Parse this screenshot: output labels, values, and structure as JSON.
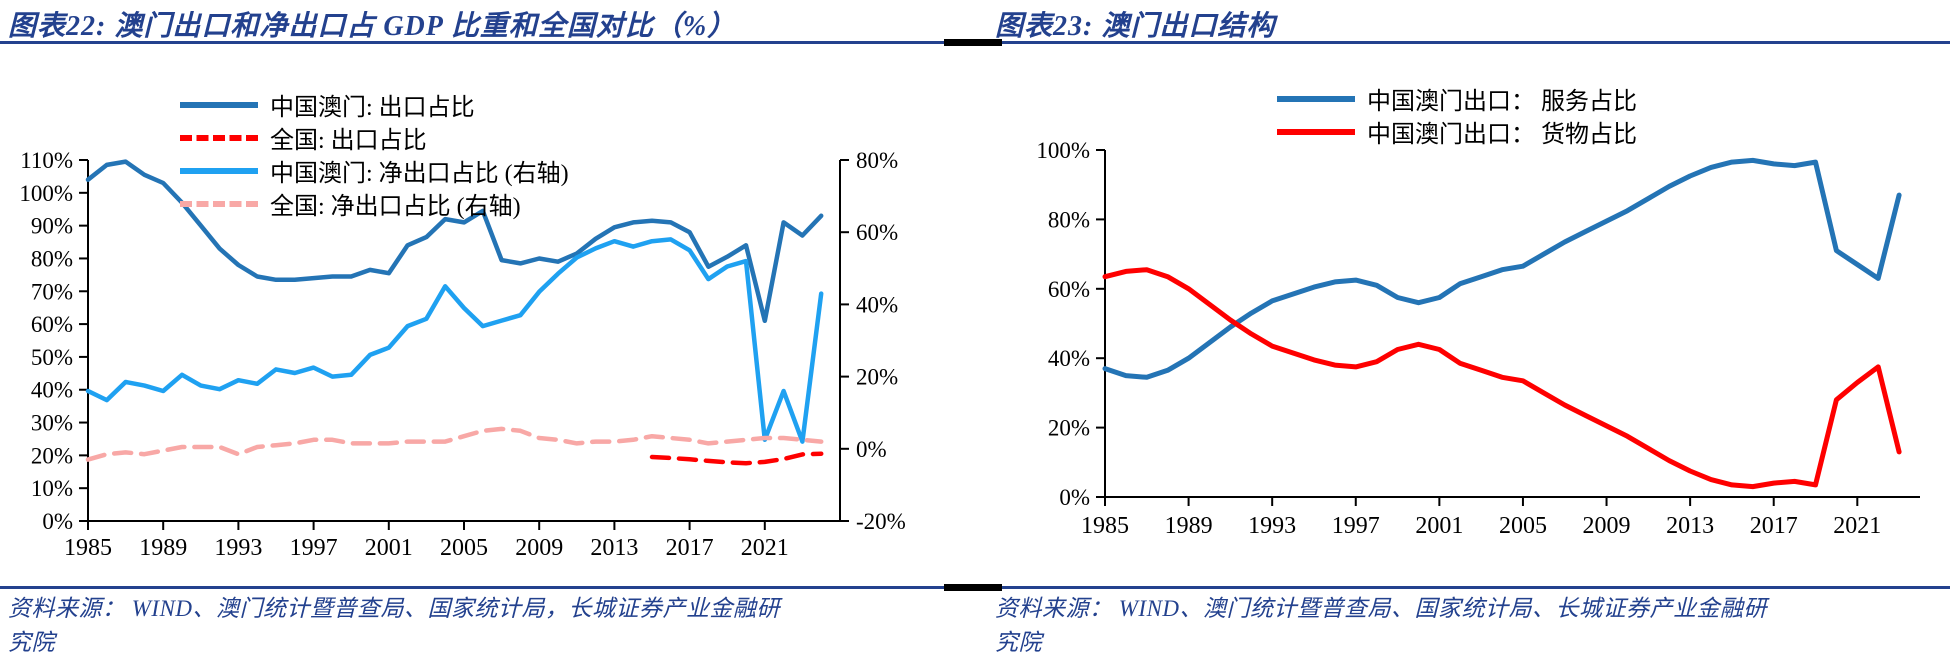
{
  "colors": {
    "navy": "#23418E",
    "axis_black": "#000000",
    "macau_export_blue": "#2474B5",
    "national_export_red": "#FE0000",
    "macau_net_export_lightblue": "#1FA1F1",
    "national_net_export_pink": "#F8A8A6"
  },
  "panels": [
    {
      "title": "图表22:  澳门出口和净出口占 GDP 比重和全国对比（%）",
      "source": "资料来源： WIND、澳门统计暨普查局、国家统计局，长城证券产业金融研究院"
    },
    {
      "title": "图表23:  澳门出口结构",
      "source": "资料来源： WIND、澳门统计暨普查局、国家统计局、长城证券产业金融研究院"
    }
  ],
  "chart_data": [
    {
      "type": "line",
      "title": "澳门出口和净出口占GDP比重和全国对比（%）",
      "grid": false,
      "legend_position": "top-left",
      "x": [
        1985,
        1986,
        1987,
        1988,
        1989,
        1990,
        1991,
        1992,
        1993,
        1994,
        1995,
        1996,
        1997,
        1998,
        1999,
        2000,
        2001,
        2002,
        2003,
        2004,
        2005,
        2006,
        2007,
        2008,
        2009,
        2010,
        2011,
        2012,
        2013,
        2014,
        2015,
        2016,
        2017,
        2018,
        2019,
        2020,
        2021,
        2022,
        2023,
        2024
      ],
      "xlim": [
        1985,
        2025
      ],
      "x_ticks": [
        1985,
        1989,
        1993,
        1997,
        2001,
        2005,
        2009,
        2013,
        2017,
        2021
      ],
      "x_tick_labels": [
        "1985",
        "1989",
        "1993",
        "1997",
        "2001",
        "2005",
        "2009",
        "2013",
        "2017",
        "2021"
      ],
      "left_axis": {
        "lim": [
          0,
          110
        ],
        "tick_values": [
          0,
          10,
          20,
          30,
          40,
          50,
          60,
          70,
          80,
          90,
          100,
          110
        ],
        "tick_labels": [
          "0%",
          "10%",
          "20%",
          "30%",
          "40%",
          "50%",
          "60%",
          "70%",
          "80%",
          "90%",
          "100%",
          "110%"
        ]
      },
      "right_axis": {
        "lim": [
          -20,
          80
        ],
        "tick_values": [
          -20,
          0,
          20,
          40,
          60,
          80
        ],
        "tick_labels": [
          "-20%",
          "0%",
          "20%",
          "40%",
          "60%",
          "80%"
        ]
      },
      "series": [
        {
          "name": "中国澳门: 出口占比",
          "axis": "left",
          "color": "#2474B5",
          "style": "solid",
          "values": [
            104,
            108.5,
            109.5,
            105.5,
            103,
            97,
            90,
            83,
            78,
            74.5,
            73.5,
            73.5,
            74,
            74.5,
            74.5,
            76.5,
            75.5,
            84,
            86.5,
            92,
            91,
            94.5,
            79.5,
            78.5,
            80,
            79,
            81.5,
            86,
            89.5,
            91,
            91.5,
            91,
            88,
            77.5,
            80.5,
            84,
            61,
            91,
            87,
            93
          ]
        },
        {
          "name": "全国: 出口占比",
          "axis": "left",
          "color": "#FE0000",
          "style": "dashed",
          "values": [
            null,
            null,
            null,
            null,
            null,
            null,
            null,
            null,
            null,
            null,
            null,
            null,
            null,
            null,
            null,
            null,
            null,
            null,
            null,
            null,
            null,
            null,
            null,
            null,
            null,
            null,
            null,
            null,
            null,
            null,
            19.5,
            19.2,
            18.8,
            18.3,
            17.9,
            17.6,
            18,
            18.9,
            20.3,
            20.5
          ]
        },
        {
          "name": "中国澳门: 净出口占比 (右轴)",
          "axis": "right",
          "color": "#1FA1F1",
          "style": "solid",
          "values": [
            16,
            13.5,
            18.5,
            17.5,
            16,
            20.5,
            17.5,
            16.5,
            19,
            18,
            22,
            21,
            22.5,
            20,
            20.5,
            26,
            28,
            34,
            36,
            45,
            39,
            34,
            35.5,
            37,
            43.5,
            48.5,
            53,
            55.5,
            57.5,
            56,
            57.5,
            58,
            55,
            47,
            50.5,
            52,
            2.5,
            16,
            2,
            43
          ]
        },
        {
          "name": "全国: 净出口占比 (右轴)",
          "axis": "right",
          "color": "#F8A8A6",
          "style": "dashed",
          "values": [
            -3,
            -1.5,
            -1,
            -1.5,
            -0.5,
            0.5,
            0.5,
            0.5,
            -1.5,
            0.5,
            1,
            1.5,
            2.5,
            2.5,
            1.5,
            1.5,
            1.5,
            2,
            2,
            2,
            3.5,
            5,
            5.5,
            5,
            3,
            2.5,
            1.5,
            2,
            2,
            2.5,
            3.5,
            3,
            2.5,
            1.5,
            2,
            2.5,
            3,
            3,
            2.5,
            2
          ]
        }
      ]
    },
    {
      "type": "line",
      "title": "澳门出口结构",
      "grid": false,
      "legend_position": "top-center",
      "x": [
        1985,
        1986,
        1987,
        1988,
        1989,
        1990,
        1991,
        1992,
        1993,
        1994,
        1995,
        1996,
        1997,
        1998,
        1999,
        2000,
        2001,
        2002,
        2003,
        2004,
        2005,
        2006,
        2007,
        2008,
        2009,
        2010,
        2011,
        2012,
        2013,
        2014,
        2015,
        2016,
        2017,
        2018,
        2019,
        2020,
        2021,
        2022,
        2023
      ],
      "xlim": [
        1985,
        2024
      ],
      "x_ticks": [
        1985,
        1989,
        1993,
        1997,
        2001,
        2005,
        2009,
        2013,
        2017,
        2021
      ],
      "x_tick_labels": [
        "1985",
        "1989",
        "1993",
        "1997",
        "2001",
        "2005",
        "2009",
        "2013",
        "2017",
        "2021"
      ],
      "left_axis": {
        "lim": [
          0,
          100
        ],
        "tick_values": [
          0,
          20,
          40,
          60,
          80,
          100
        ],
        "tick_labels": [
          "0%",
          "20%",
          "40%",
          "60%",
          "80%",
          "100%"
        ]
      },
      "series": [
        {
          "name": "中国澳门出口： 服务占比",
          "axis": "left",
          "color": "#2474B5",
          "style": "solid",
          "values": [
            37,
            35,
            34.5,
            36.5,
            40,
            44.5,
            49,
            53,
            56.5,
            58.5,
            60.5,
            62,
            62.5,
            61,
            57.5,
            56,
            57.5,
            61.5,
            63.5,
            65.5,
            66.5,
            70,
            73.5,
            76.5,
            79.5,
            82.5,
            86,
            89.5,
            92.5,
            95,
            96.5,
            97,
            96,
            95.5,
            96.5,
            71,
            67,
            63,
            87
          ]
        },
        {
          "name": "中国澳门出口： 货物占比",
          "axis": "left",
          "color": "#FE0000",
          "style": "solid",
          "values": [
            63.5,
            65,
            65.5,
            63.5,
            60,
            55.5,
            51,
            47,
            43.5,
            41.5,
            39.5,
            38,
            37.5,
            39,
            42.5,
            44,
            42.5,
            38.5,
            36.5,
            34.5,
            33.5,
            30,
            26.5,
            23.5,
            20.5,
            17.5,
            14,
            10.5,
            7.5,
            5,
            3.5,
            3,
            4,
            4.5,
            3.5,
            28,
            33,
            37.5,
            13
          ]
        }
      ]
    }
  ]
}
